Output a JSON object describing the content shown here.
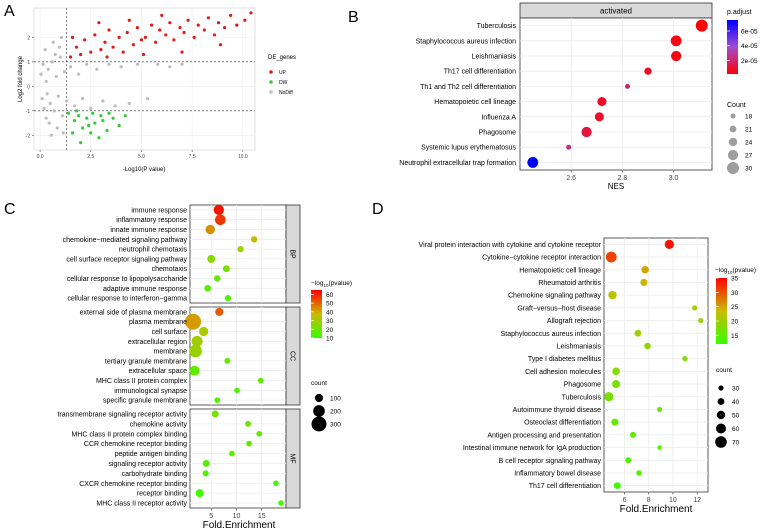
{
  "chart_data": [
    {
      "panel": "A",
      "type": "scatter",
      "title": "",
      "xlabel": "-Log10(P value)",
      "ylabel": "Log2 fold change",
      "xlim": [
        -0.3,
        10.6
      ],
      "ylim": [
        -2.6,
        3.2
      ],
      "x_ticks": [
        "0.0",
        "2.5",
        "5.0",
        "7.5",
        "10.0"
      ],
      "x_tick_values": [
        0,
        2.5,
        5,
        7.5,
        10
      ],
      "y_ticks": [
        "-2",
        "-1",
        "0",
        "1",
        "2"
      ],
      "y_tick_values": [
        -2,
        -1,
        0,
        1,
        2
      ],
      "thresholds": {
        "x": 1.3,
        "y": [
          1,
          -1
        ]
      },
      "legend": {
        "title": "DE_genes",
        "position": "right",
        "entries": [
          "UP",
          "DW",
          "NoDiff"
        ],
        "colors": [
          "#e31a1c",
          "#33cc33",
          "#bdbdbd"
        ]
      },
      "series": [
        {
          "name": "UP",
          "points": [
            [
              1.5,
              1.2
            ],
            [
              1.8,
              1.6
            ],
            [
              2.0,
              1.3
            ],
            [
              2.2,
              1.9
            ],
            [
              2.5,
              1.4
            ],
            [
              2.7,
              2.1
            ],
            [
              3.0,
              1.5
            ],
            [
              3.2,
              1.8
            ],
            [
              3.4,
              2.3
            ],
            [
              3.6,
              1.6
            ],
            [
              3.9,
              2.0
            ],
            [
              4.1,
              1.4
            ],
            [
              4.3,
              2.2
            ],
            [
              4.6,
              1.7
            ],
            [
              4.8,
              2.4
            ],
            [
              5.0,
              1.9
            ],
            [
              5.2,
              2.0
            ],
            [
              5.5,
              2.5
            ],
            [
              5.7,
              1.8
            ],
            [
              5.9,
              2.3
            ],
            [
              6.2,
              2.1
            ],
            [
              6.4,
              2.6
            ],
            [
              6.6,
              1.9
            ],
            [
              6.9,
              2.4
            ],
            [
              7.1,
              2.2
            ],
            [
              7.3,
              2.7
            ],
            [
              7.6,
              2.0
            ],
            [
              7.8,
              2.5
            ],
            [
              8.1,
              2.3
            ],
            [
              8.3,
              2.8
            ],
            [
              8.6,
              2.1
            ],
            [
              8.8,
              2.6
            ],
            [
              9.1,
              2.4
            ],
            [
              9.4,
              2.9
            ],
            [
              9.7,
              2.5
            ],
            [
              10.1,
              2.7
            ],
            [
              10.4,
              3.0
            ],
            [
              2.9,
              2.6
            ],
            [
              4.4,
              2.7
            ],
            [
              6.0,
              2.9
            ],
            [
              1.6,
              2.0
            ],
            [
              3.3,
              1.2
            ],
            [
              5.1,
              1.3
            ],
            [
              7.0,
              1.4
            ],
            [
              8.9,
              1.7
            ]
          ]
        },
        {
          "name": "DW",
          "points": [
            [
              1.4,
              -1.1
            ],
            [
              1.7,
              -1.4
            ],
            [
              1.9,
              -1.2
            ],
            [
              2.1,
              -1.7
            ],
            [
              2.3,
              -1.3
            ],
            [
              2.5,
              -1.9
            ],
            [
              2.7,
              -1.5
            ],
            [
              2.9,
              -2.1
            ],
            [
              3.1,
              -1.4
            ],
            [
              3.3,
              -1.8
            ],
            [
              3.6,
              -1.3
            ],
            [
              3.9,
              -1.6
            ],
            [
              4.2,
              -1.2
            ],
            [
              2.0,
              -2.3
            ],
            [
              1.6,
              -1.9
            ],
            [
              2.6,
              -1.1
            ],
            [
              3.4,
              -1.1
            ],
            [
              1.8,
              -1.0
            ],
            [
              2.4,
              -1.6
            ],
            [
              3.0,
              -1.2
            ]
          ]
        },
        {
          "name": "NoDiff",
          "points": [
            [
              0.05,
              0.5
            ],
            [
              0.1,
              -0.5
            ],
            [
              0.15,
              0.9
            ],
            [
              0.2,
              -0.9
            ],
            [
              0.3,
              0.2
            ],
            [
              0.35,
              -0.3
            ],
            [
              0.4,
              0.7
            ],
            [
              0.5,
              -0.7
            ],
            [
              0.6,
              1.0
            ],
            [
              0.7,
              -1.0
            ],
            [
              0.8,
              0.4
            ],
            [
              0.9,
              -0.4
            ],
            [
              1.0,
              1.2
            ],
            [
              1.1,
              -1.2
            ],
            [
              1.2,
              0.6
            ],
            [
              1.3,
              -0.6
            ],
            [
              1.5,
              0.8
            ],
            [
              1.7,
              -0.8
            ],
            [
              1.9,
              0.5
            ],
            [
              2.1,
              -0.5
            ],
            [
              2.3,
              0.9
            ],
            [
              2.5,
              -0.9
            ],
            [
              2.8,
              0.7
            ],
            [
              3.1,
              -0.6
            ],
            [
              3.4,
              0.9
            ],
            [
              3.7,
              -0.8
            ],
            [
              4.0,
              0.8
            ],
            [
              4.4,
              -0.7
            ],
            [
              4.8,
              0.9
            ],
            [
              5.3,
              -0.5
            ],
            [
              5.8,
              0.9
            ],
            [
              6.4,
              0.8
            ],
            [
              7.0,
              0.9
            ],
            [
              0.25,
              1.5
            ],
            [
              0.45,
              -1.5
            ],
            [
              0.65,
              1.8
            ],
            [
              0.85,
              -1.7
            ],
            [
              1.05,
              2.0
            ],
            [
              1.15,
              -1.9
            ],
            [
              0.55,
              -2.0
            ],
            [
              0.95,
              1.6
            ],
            [
              0.3,
              -1.3
            ],
            [
              0.75,
              1.3
            ]
          ]
        }
      ]
    },
    {
      "panel": "B",
      "type": "scatter",
      "facet": "activated",
      "xlabel": "NES",
      "ylabel": "",
      "xlim": [
        2.4,
        3.15
      ],
      "x_ticks": [
        "2.6",
        "2.8",
        "3.0"
      ],
      "x_tick_values": [
        2.6,
        2.8,
        3.0
      ],
      "categories": [
        "Tuberculosis",
        "Staphylococcus aureus infection",
        "Leishmaniasis",
        "Th17 cell differentiation",
        "Th1 and Th2 cell differentiation",
        "Hematopoietic cell lineage",
        "Influenza A",
        "Phagosome",
        "Systemic lupus erythematosus",
        "Neutrophil extracellular trap formation"
      ],
      "nes": [
        3.11,
        3.01,
        3.01,
        2.9,
        2.82,
        2.72,
        2.71,
        2.66,
        2.59,
        2.45
      ],
      "count": [
        30,
        28,
        27,
        22,
        18,
        25,
        25,
        27,
        18,
        28
      ],
      "p_adjust": [
        2e-06,
        5e-06,
        5e-06,
        8e-06,
        2e-05,
        8e-06,
        8e-06,
        1.2e-05,
        2.5e-05,
        7.5e-05
      ],
      "colorbar": {
        "title": "p.adjust",
        "tick_labels": [
          "6e-05",
          "4e-05",
          "2e-05"
        ],
        "tick_values": [
          6e-05,
          4e-05,
          2e-05
        ],
        "range": [
          1.5e-06,
          7.5e-05
        ]
      },
      "size_legend": {
        "title": "Count",
        "values": [
          18,
          21,
          24,
          27,
          30
        ],
        "labels": [
          "18",
          "21",
          "24",
          "27",
          "30"
        ]
      }
    },
    {
      "panel": "C",
      "type": "scatter",
      "xlabel": "Fold.Enrichment",
      "x_ticks": [
        "5",
        "10",
        "15"
      ],
      "x_tick_values": [
        5,
        10,
        15
      ],
      "xlim": [
        0.8,
        19.8
      ],
      "facets": [
        {
          "name": "BP",
          "terms": [
            "immune response",
            "inflammatory response",
            "innate immune response",
            "chemokine−mediated signaling pathway",
            "neutrophil chemotaxis",
            "cell surface receptor signaling pathway",
            "chemotaxis",
            "cellular response to lipopolysaccharide",
            "adaptive immune response",
            "cellular response to interferon−gamma"
          ],
          "fold": [
            6.5,
            6.8,
            4.8,
            13.5,
            10.8,
            5.0,
            8.0,
            6.2,
            4.3,
            8.3
          ],
          "count": [
            160,
            170,
            135,
            45,
            40,
            90,
            60,
            45,
            55,
            40
          ],
          "neglog10p": [
            62,
            57,
            44,
            37,
            28,
            25,
            22,
            18,
            16,
            15
          ]
        },
        {
          "name": "CC",
          "terms": [
            "external side of plasma membrane",
            "plasma membrane",
            "cell surface",
            "extracellular region",
            "membrane",
            "tertiary granule membrane",
            "extracellular space",
            "MHC class II protein complex",
            "immunological synapse",
            "specific granule membrane"
          ],
          "fold": [
            6.6,
            1.4,
            3.5,
            2.2,
            1.9,
            8.2,
            1.7,
            14.8,
            10.1,
            6.2
          ],
          "count": [
            95,
            330,
            130,
            180,
            230,
            30,
            150,
            20,
            20,
            25
          ],
          "neglog10p": [
            52,
            42,
            32,
            30,
            28,
            20,
            18,
            16,
            14,
            13
          ]
        },
        {
          "name": "MF",
          "terms": [
            "transmembrane signaling receptor activity",
            "chemokine activity",
            "MHC class II protein complex binding",
            "CCR chemokine receptor binding",
            "peptide antigen binding",
            "signaling receptor activity",
            "carbohydrate binding",
            "CXCR chemokine receptor binding",
            "receptor binding",
            "MHC class II receptor activity"
          ],
          "fold": [
            5.8,
            12.3,
            14.5,
            12.5,
            9.1,
            4.0,
            3.9,
            17.8,
            2.7,
            18.8
          ],
          "count": [
            60,
            30,
            25,
            25,
            25,
            60,
            35,
            20,
            90,
            20
          ],
          "neglog10p": [
            22,
            21,
            19,
            18,
            17,
            16,
            15,
            13,
            12,
            11
          ]
        }
      ],
      "colorbar": {
        "title_prefix": "−log",
        "title_sub": "10",
        "title_suffix": "(pvalue)",
        "tick_labels": [
          "60",
          "50",
          "40",
          "30",
          "20",
          "10"
        ],
        "tick_values": [
          60,
          50,
          40,
          30,
          20,
          10
        ],
        "range": [
          10,
          65
        ]
      },
      "size_legend": {
        "title": "count",
        "values": [
          100,
          200,
          300
        ],
        "labels": [
          "100",
          "200",
          "300"
        ]
      }
    },
    {
      "panel": "D",
      "type": "scatter",
      "xlabel": "Fold.Enrichment",
      "x_ticks": [
        "6",
        "8",
        "10",
        "12"
      ],
      "x_tick_values": [
        6,
        8,
        10,
        12
      ],
      "xlim": [
        4.3,
        12.9
      ],
      "terms": [
        "Viral protein interaction with cytokine and cytokine receptor",
        "Cytokine−cytokine receptor interaction",
        "Hematopoietic cell lineage",
        "Rheumatoid arthritis",
        "Chemokine signaling pathway",
        "Graft−versus−host disease",
        "Allograft rejection",
        "Staphylococcus aureus infection",
        "Leishmaniasis",
        "Type I diabetes mellitus",
        "Cell adhesion molecules",
        "Phagosome",
        "Tuberculosis",
        "Autoimmune thyroid disease",
        "Osteoclast differentiation",
        "Antigen processing and presentation",
        "Intestinal immune network for IgA production",
        "B cell receptor signaling pathway",
        "Inflammatory bowel disease",
        "Th17 cell differentiation"
      ],
      "fold": [
        9.7,
        4.9,
        7.7,
        7.6,
        5.0,
        11.8,
        12.3,
        7.1,
        7.9,
        11.0,
        5.3,
        5.3,
        4.7,
        8.9,
        5.2,
        6.7,
        8.9,
        6.3,
        7.2,
        5.4
      ],
      "count": [
        55,
        65,
        45,
        42,
        50,
        30,
        30,
        40,
        38,
        30,
        45,
        48,
        55,
        30,
        42,
        35,
        25,
        35,
        32,
        40
      ],
      "neglog10p": [
        34,
        31,
        25,
        24,
        22,
        21,
        20,
        20,
        19,
        18,
        18,
        17,
        17,
        16,
        16,
        15,
        14,
        14,
        14,
        13
      ],
      "colorbar": {
        "title_prefix": "−log",
        "title_sub": "10",
        "title_suffix": "(pvalue)",
        "tick_labels": [
          "35",
          "30",
          "25",
          "20",
          "15"
        ],
        "tick_values": [
          35,
          30,
          25,
          20,
          15
        ],
        "range": [
          12,
          35
        ]
      },
      "size_legend": {
        "title": "count",
        "values": [
          30,
          40,
          50,
          60,
          70
        ],
        "labels": [
          "30",
          "40",
          "50",
          "60",
          "70"
        ]
      }
    }
  ],
  "panel_labels": [
    "A",
    "B",
    "C",
    "D"
  ],
  "colors": {
    "up": "#e31a1c",
    "down": "#33cc33",
    "nodiff": "#bdbdbd",
    "grid": "#ebebeb",
    "strip": "#d9d9d9"
  }
}
